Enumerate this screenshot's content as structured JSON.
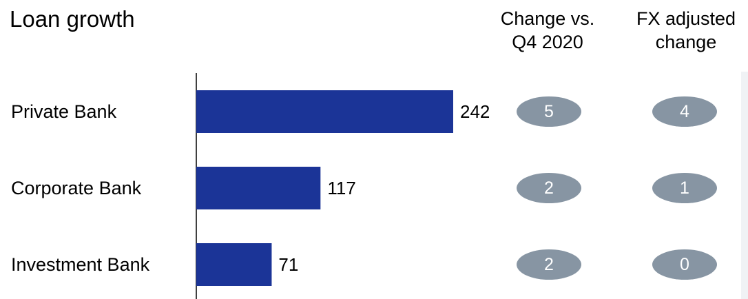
{
  "chart_data": {
    "type": "bar",
    "orientation": "horizontal",
    "title": "Loan growth",
    "categories": [
      "Private Bank",
      "Corporate Bank",
      "Investment Bank"
    ],
    "values": [
      242,
      117,
      71
    ],
    "xlim": [
      0,
      242
    ],
    "bar_color": "#1b3497",
    "columns": [
      {
        "header": "Change vs.\nQ4 2020",
        "values": [
          "5",
          "2",
          "2"
        ]
      },
      {
        "header": "FX adjusted\nchange",
        "values": [
          "4",
          "1",
          "0"
        ]
      }
    ],
    "pill_color": "#8795a3",
    "pill_text_color": "#ffffff"
  }
}
